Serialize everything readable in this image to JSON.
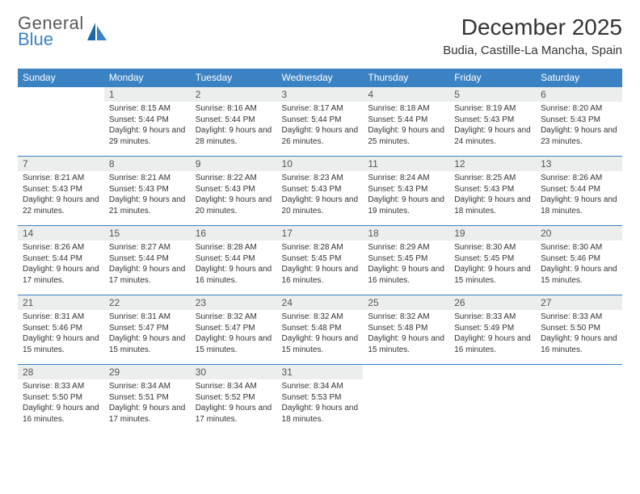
{
  "logo": {
    "word1": "General",
    "word2": "Blue"
  },
  "title": "December 2025",
  "location": "Budia, Castille-La Mancha, Spain",
  "colors": {
    "header_bg": "#3b82c4",
    "header_text": "#ffffff",
    "daynum_bg": "#eceded",
    "rule": "#3b82c4",
    "body_bg": "#ffffff",
    "text": "#333333",
    "logo_gray": "#58595b",
    "logo_blue": "#3b82c4"
  },
  "typography": {
    "title_fontsize": 28,
    "location_fontsize": 15,
    "weekday_fontsize": 12,
    "daynum_fontsize": 12,
    "cell_fontsize": 10
  },
  "weekdays": [
    "Sunday",
    "Monday",
    "Tuesday",
    "Wednesday",
    "Thursday",
    "Friday",
    "Saturday"
  ],
  "weeks": [
    [
      {
        "n": "",
        "sunrise": "",
        "sunset": "",
        "daylight": ""
      },
      {
        "n": "1",
        "sunrise": "Sunrise: 8:15 AM",
        "sunset": "Sunset: 5:44 PM",
        "daylight": "Daylight: 9 hours and 29 minutes."
      },
      {
        "n": "2",
        "sunrise": "Sunrise: 8:16 AM",
        "sunset": "Sunset: 5:44 PM",
        "daylight": "Daylight: 9 hours and 28 minutes."
      },
      {
        "n": "3",
        "sunrise": "Sunrise: 8:17 AM",
        "sunset": "Sunset: 5:44 PM",
        "daylight": "Daylight: 9 hours and 26 minutes."
      },
      {
        "n": "4",
        "sunrise": "Sunrise: 8:18 AM",
        "sunset": "Sunset: 5:44 PM",
        "daylight": "Daylight: 9 hours and 25 minutes."
      },
      {
        "n": "5",
        "sunrise": "Sunrise: 8:19 AM",
        "sunset": "Sunset: 5:43 PM",
        "daylight": "Daylight: 9 hours and 24 minutes."
      },
      {
        "n": "6",
        "sunrise": "Sunrise: 8:20 AM",
        "sunset": "Sunset: 5:43 PM",
        "daylight": "Daylight: 9 hours and 23 minutes."
      }
    ],
    [
      {
        "n": "7",
        "sunrise": "Sunrise: 8:21 AM",
        "sunset": "Sunset: 5:43 PM",
        "daylight": "Daylight: 9 hours and 22 minutes."
      },
      {
        "n": "8",
        "sunrise": "Sunrise: 8:21 AM",
        "sunset": "Sunset: 5:43 PM",
        "daylight": "Daylight: 9 hours and 21 minutes."
      },
      {
        "n": "9",
        "sunrise": "Sunrise: 8:22 AM",
        "sunset": "Sunset: 5:43 PM",
        "daylight": "Daylight: 9 hours and 20 minutes."
      },
      {
        "n": "10",
        "sunrise": "Sunrise: 8:23 AM",
        "sunset": "Sunset: 5:43 PM",
        "daylight": "Daylight: 9 hours and 20 minutes."
      },
      {
        "n": "11",
        "sunrise": "Sunrise: 8:24 AM",
        "sunset": "Sunset: 5:43 PM",
        "daylight": "Daylight: 9 hours and 19 minutes."
      },
      {
        "n": "12",
        "sunrise": "Sunrise: 8:25 AM",
        "sunset": "Sunset: 5:43 PM",
        "daylight": "Daylight: 9 hours and 18 minutes."
      },
      {
        "n": "13",
        "sunrise": "Sunrise: 8:26 AM",
        "sunset": "Sunset: 5:44 PM",
        "daylight": "Daylight: 9 hours and 18 minutes."
      }
    ],
    [
      {
        "n": "14",
        "sunrise": "Sunrise: 8:26 AM",
        "sunset": "Sunset: 5:44 PM",
        "daylight": "Daylight: 9 hours and 17 minutes."
      },
      {
        "n": "15",
        "sunrise": "Sunrise: 8:27 AM",
        "sunset": "Sunset: 5:44 PM",
        "daylight": "Daylight: 9 hours and 17 minutes."
      },
      {
        "n": "16",
        "sunrise": "Sunrise: 8:28 AM",
        "sunset": "Sunset: 5:44 PM",
        "daylight": "Daylight: 9 hours and 16 minutes."
      },
      {
        "n": "17",
        "sunrise": "Sunrise: 8:28 AM",
        "sunset": "Sunset: 5:45 PM",
        "daylight": "Daylight: 9 hours and 16 minutes."
      },
      {
        "n": "18",
        "sunrise": "Sunrise: 8:29 AM",
        "sunset": "Sunset: 5:45 PM",
        "daylight": "Daylight: 9 hours and 16 minutes."
      },
      {
        "n": "19",
        "sunrise": "Sunrise: 8:30 AM",
        "sunset": "Sunset: 5:45 PM",
        "daylight": "Daylight: 9 hours and 15 minutes."
      },
      {
        "n": "20",
        "sunrise": "Sunrise: 8:30 AM",
        "sunset": "Sunset: 5:46 PM",
        "daylight": "Daylight: 9 hours and 15 minutes."
      }
    ],
    [
      {
        "n": "21",
        "sunrise": "Sunrise: 8:31 AM",
        "sunset": "Sunset: 5:46 PM",
        "daylight": "Daylight: 9 hours and 15 minutes."
      },
      {
        "n": "22",
        "sunrise": "Sunrise: 8:31 AM",
        "sunset": "Sunset: 5:47 PM",
        "daylight": "Daylight: 9 hours and 15 minutes."
      },
      {
        "n": "23",
        "sunrise": "Sunrise: 8:32 AM",
        "sunset": "Sunset: 5:47 PM",
        "daylight": "Daylight: 9 hours and 15 minutes."
      },
      {
        "n": "24",
        "sunrise": "Sunrise: 8:32 AM",
        "sunset": "Sunset: 5:48 PM",
        "daylight": "Daylight: 9 hours and 15 minutes."
      },
      {
        "n": "25",
        "sunrise": "Sunrise: 8:32 AM",
        "sunset": "Sunset: 5:48 PM",
        "daylight": "Daylight: 9 hours and 15 minutes."
      },
      {
        "n": "26",
        "sunrise": "Sunrise: 8:33 AM",
        "sunset": "Sunset: 5:49 PM",
        "daylight": "Daylight: 9 hours and 16 minutes."
      },
      {
        "n": "27",
        "sunrise": "Sunrise: 8:33 AM",
        "sunset": "Sunset: 5:50 PM",
        "daylight": "Daylight: 9 hours and 16 minutes."
      }
    ],
    [
      {
        "n": "28",
        "sunrise": "Sunrise: 8:33 AM",
        "sunset": "Sunset: 5:50 PM",
        "daylight": "Daylight: 9 hours and 16 minutes."
      },
      {
        "n": "29",
        "sunrise": "Sunrise: 8:34 AM",
        "sunset": "Sunset: 5:51 PM",
        "daylight": "Daylight: 9 hours and 17 minutes."
      },
      {
        "n": "30",
        "sunrise": "Sunrise: 8:34 AM",
        "sunset": "Sunset: 5:52 PM",
        "daylight": "Daylight: 9 hours and 17 minutes."
      },
      {
        "n": "31",
        "sunrise": "Sunrise: 8:34 AM",
        "sunset": "Sunset: 5:53 PM",
        "daylight": "Daylight: 9 hours and 18 minutes."
      },
      {
        "n": "",
        "sunrise": "",
        "sunset": "",
        "daylight": ""
      },
      {
        "n": "",
        "sunrise": "",
        "sunset": "",
        "daylight": ""
      },
      {
        "n": "",
        "sunrise": "",
        "sunset": "",
        "daylight": ""
      }
    ]
  ]
}
